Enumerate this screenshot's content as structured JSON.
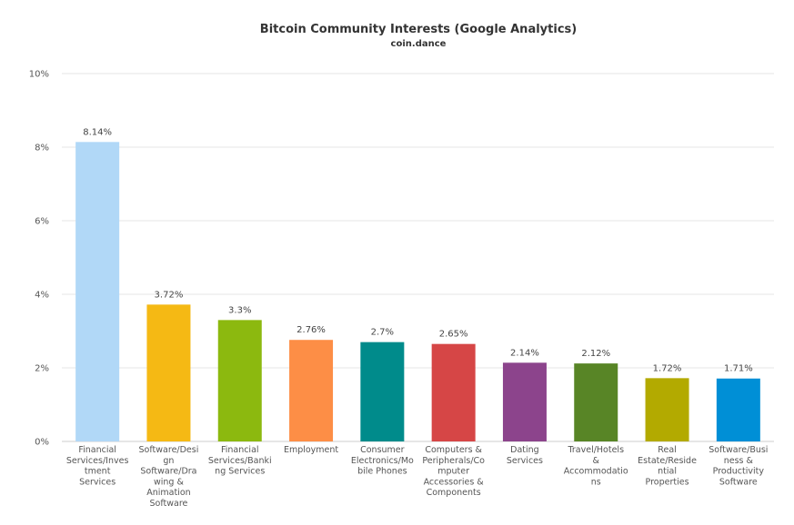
{
  "chart_data": {
    "type": "bar",
    "title": "Bitcoin Community Interests (Google Analytics)",
    "subtitle": "coin.dance",
    "xlabel": "",
    "ylabel": "",
    "ylim": [
      0,
      10
    ],
    "yticks": [
      "0%",
      "2%",
      "4%",
      "6%",
      "8%",
      "10%"
    ],
    "grid": true,
    "legend": "none",
    "categories": [
      [
        "Financial",
        "Services/Inves",
        "tment",
        "Services"
      ],
      [
        "Software/Desi",
        "gn",
        "Software/Dra",
        "wing &",
        "Animation",
        "Software"
      ],
      [
        "Financial",
        "Services/Banki",
        "ng Services"
      ],
      [
        "Employment"
      ],
      [
        "Consumer",
        "Electronics/Mo",
        "bile Phones"
      ],
      [
        "Computers &",
        "Peripherals/Co",
        "mputer",
        "Accessories &",
        "Components"
      ],
      [
        "Dating",
        "Services"
      ],
      [
        "Travel/Hotels",
        "&",
        "Accommodatio",
        "ns"
      ],
      [
        "Real",
        "Estate/Reside",
        "ntial",
        "Properties"
      ],
      [
        "Software/Busi",
        "ness &",
        "Productivity",
        "Software"
      ]
    ],
    "values": [
      8.14,
      3.72,
      3.3,
      2.76,
      2.7,
      2.65,
      2.14,
      2.12,
      1.72,
      1.71
    ],
    "data_labels": [
      "8.14%",
      "3.72%",
      "3.3%",
      "2.76%",
      "2.7%",
      "2.65%",
      "2.14%",
      "2.12%",
      "1.72%",
      "1.71%"
    ],
    "colors": [
      "#b1d8f7",
      "#f5b914",
      "#8cb90f",
      "#fd8e46",
      "#008b8b",
      "#d64646",
      "#8c448c",
      "#588526",
      "#b3aa00",
      "#008fd6"
    ]
  }
}
